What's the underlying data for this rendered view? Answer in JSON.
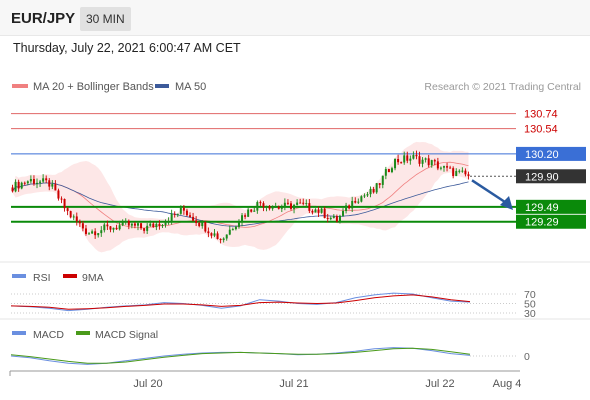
{
  "header": {
    "pair": "EUR/JPY",
    "timeframe": "30 MIN",
    "datetime": "Thursday, July 22, 2021 6:00:47 AM CET"
  },
  "legend": {
    "ma20_bb": "MA 20 + Bollinger Bands",
    "ma50": "MA 50",
    "credit": "Research © 2021 Trading Central",
    "rsi": "RSI",
    "rsi_ma": "9MA",
    "macd": "MACD",
    "macd_signal": "MACD Signal"
  },
  "colors": {
    "ma20": "#f08080",
    "bollinger_fill": "#fde3e3",
    "ma50": "#3c5a9a",
    "resistance": "#e06666",
    "pivot": "#3a6fd6",
    "support": "#0a8a0a",
    "price_tag": "#333333",
    "arrow": "#2a5aa0",
    "candle_up": "#1a8a1a",
    "candle_down": "#cc0000",
    "rsi": "#6a8fe0",
    "rsi_ma": "#cc0000",
    "macd": "#6a8fe0",
    "macd_signal": "#4a9a1a"
  },
  "chart_data": [
    {
      "type": "candlestick",
      "panel": "price",
      "title": "EUR/JPY 30 MIN",
      "x_axis_labels": [
        "Jul 20",
        "Jul 21",
        "Jul 22",
        "Aug 4"
      ],
      "ylim": [
        128.75,
        130.95
      ],
      "levels": [
        {
          "value": 130.74,
          "label": "130.74",
          "kind": "resistance"
        },
        {
          "value": 130.54,
          "label": "130.54",
          "kind": "resistance"
        },
        {
          "value": 130.2,
          "label": "130.20",
          "kind": "pivot"
        },
        {
          "value": 129.9,
          "label": "129.90",
          "kind": "last_price"
        },
        {
          "value": 129.49,
          "label": "129.49",
          "kind": "support"
        },
        {
          "value": 129.29,
          "label": "129.29",
          "kind": "support"
        }
      ],
      "close_path": [
        129.75,
        129.85,
        129.8,
        129.4,
        129.15,
        129.2,
        129.25,
        129.2,
        129.3,
        129.45,
        129.25,
        129.05,
        129.35,
        129.55,
        129.48,
        129.52,
        129.45,
        129.3,
        129.6,
        129.7,
        130.1,
        130.15,
        130.08,
        129.96,
        129.9
      ]
    },
    {
      "type": "line",
      "panel": "rsi",
      "series": [
        {
          "name": "RSI"
        },
        {
          "name": "9MA"
        }
      ],
      "y_ticks": [
        70,
        50,
        30
      ],
      "ylim": [
        0,
        100
      ],
      "rsi": [
        45,
        43,
        40,
        35,
        38,
        42,
        45,
        47,
        52,
        50,
        46,
        40,
        45,
        58,
        55,
        50,
        48,
        52,
        62,
        68,
        72,
        70,
        62,
        55,
        53
      ],
      "rsi_ma": [
        45,
        44,
        42,
        38,
        39,
        41,
        44,
        46,
        49,
        49,
        47,
        44,
        46,
        52,
        53,
        51,
        50,
        51,
        56,
        62,
        66,
        68,
        64,
        58,
        54
      ]
    },
    {
      "type": "line",
      "panel": "macd",
      "series": [
        {
          "name": "MACD"
        },
        {
          "name": "MACD Signal"
        }
      ],
      "y_ticks": [
        0
      ],
      "macd": [
        0.0,
        -0.03,
        -0.08,
        -0.12,
        -0.14,
        -0.12,
        -0.08,
        -0.04,
        0.0,
        0.03,
        0.05,
        0.06,
        0.06,
        0.05,
        0.04,
        0.02,
        0.03,
        0.05,
        0.08,
        0.12,
        0.14,
        0.13,
        0.09,
        0.04,
        0.01
      ],
      "signal": [
        0.02,
        -0.01,
        -0.05,
        -0.09,
        -0.12,
        -0.12,
        -0.1,
        -0.06,
        -0.02,
        0.01,
        0.04,
        0.05,
        0.06,
        0.05,
        0.04,
        0.03,
        0.03,
        0.04,
        0.06,
        0.09,
        0.12,
        0.13,
        0.11,
        0.07,
        0.03
      ]
    }
  ]
}
